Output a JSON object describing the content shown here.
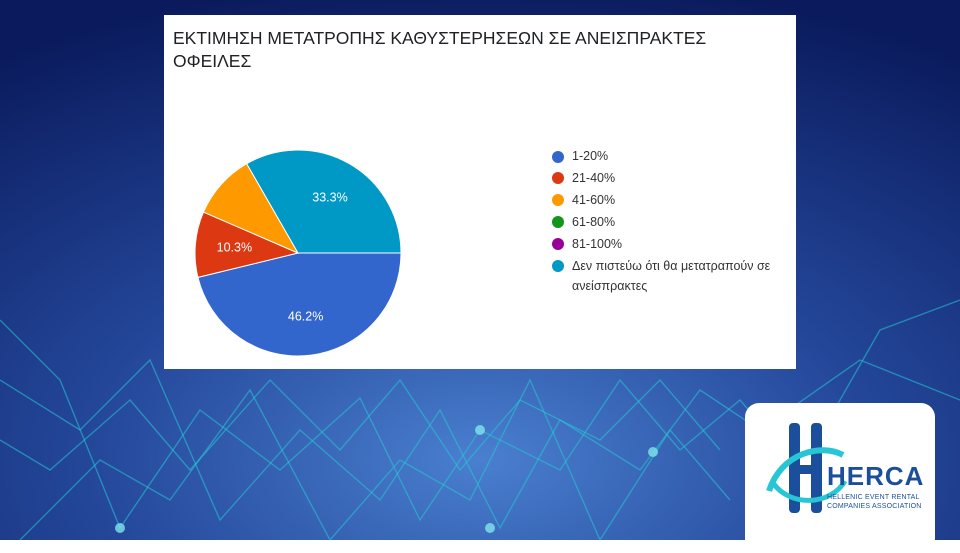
{
  "colors": {
    "background_dark": "#0a1a5c",
    "background_light": "#2f63b8",
    "line_accent": "#27c6d6"
  },
  "chart_data": {
    "type": "pie",
    "title": "ΕΚΤΙΜΗΣΗ ΜΕΤΑΤΡΟΠΗΣ ΚΑΘΥΣΤΕΡΗΣΕΩΝ ΣΕ ΑΝΕΙΣΠΡΑΚΤΕΣ ΟΦΕΙΛΕΣ",
    "legend_position": "right",
    "slices": [
      {
        "label": "1-20%",
        "value": 46.2,
        "display": "46.2%",
        "color": "#3366cc"
      },
      {
        "label": "21-40%",
        "value": 10.3,
        "display": "10.3%",
        "color": "#dc3912"
      },
      {
        "label": "41-60%",
        "value": 10.2,
        "display": "",
        "color": "#ff9900"
      },
      {
        "label": "61-80%",
        "value": 0,
        "display": "",
        "color": "#109618"
      },
      {
        "label": "81-100%",
        "value": 0,
        "display": "",
        "color": "#990099"
      },
      {
        "label": "Δεν πιστεύω ότι θα μετατραπούν σε ανείσπρακτες",
        "value": 33.3,
        "display": "33.3%",
        "color": "#0099c6"
      }
    ]
  },
  "logo": {
    "wordmark": "HERCA",
    "subtitle_line1": "HELLENIC EVENT RENTAL",
    "subtitle_line2": "COMPANIES ASSOCIATION"
  }
}
